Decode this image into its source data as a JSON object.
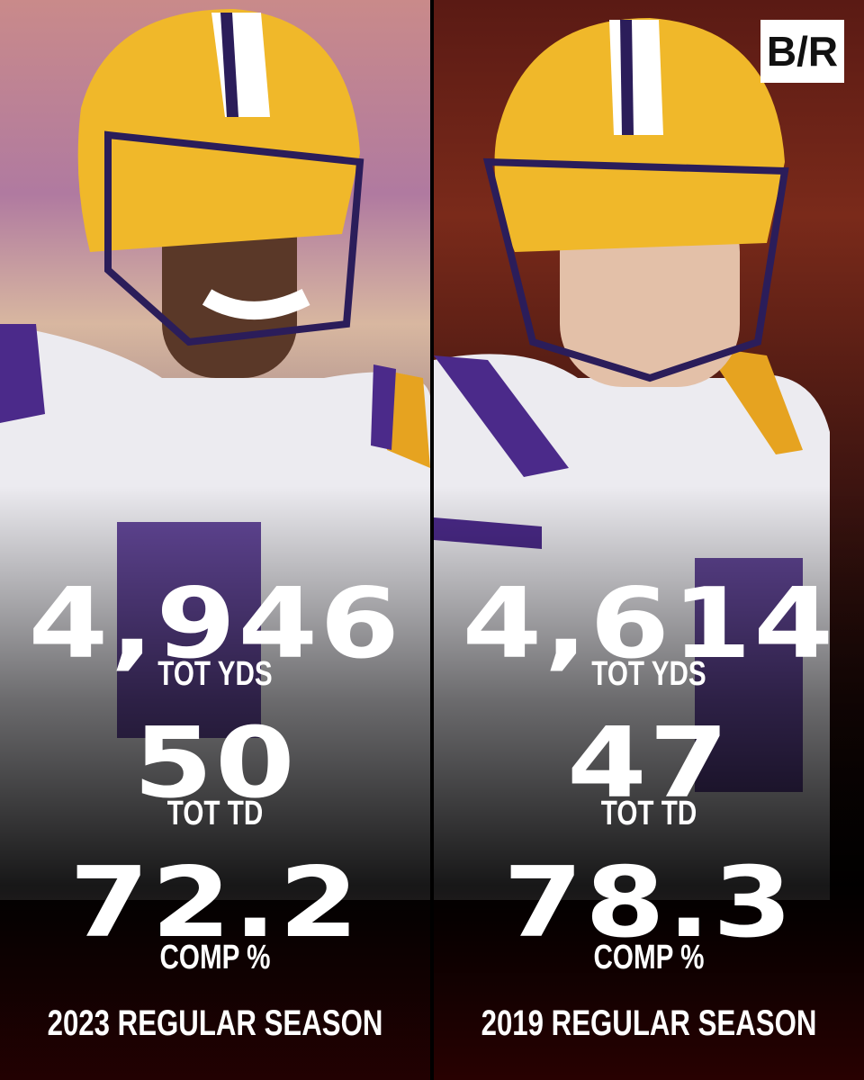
{
  "logo": "B/R",
  "panels": [
    {
      "stats": [
        {
          "value": "4,946",
          "label": "TOT YDS"
        },
        {
          "value": "50",
          "label": "TOT TD"
        },
        {
          "value": "72.2",
          "label": "COMP %"
        }
      ],
      "season": "2023 REGULAR SEASON"
    },
    {
      "stats": [
        {
          "value": "4,614",
          "label": "TOT YDS"
        },
        {
          "value": "47",
          "label": "TOT TD"
        },
        {
          "value": "78.3",
          "label": "COMP %"
        }
      ],
      "season": "2019 REGULAR SEASON"
    }
  ]
}
